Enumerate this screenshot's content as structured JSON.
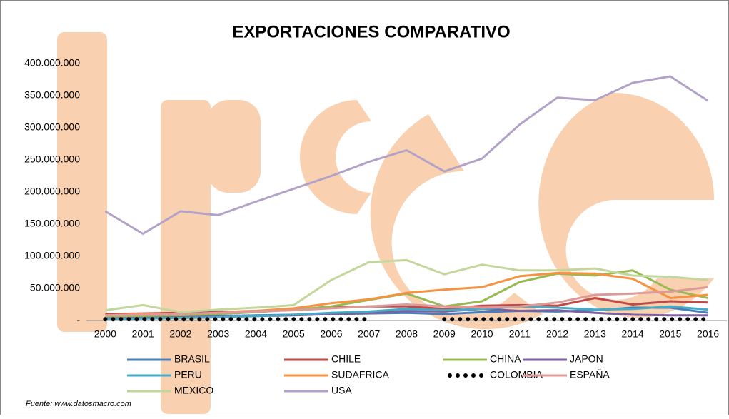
{
  "chart_data": {
    "type": "line",
    "title": "EXPORTACIONES COMPARATIVO",
    "source": "Fuente: www.datosmacro.com",
    "categories": [
      "2000",
      "2001",
      "2002",
      "2003",
      "2004",
      "2005",
      "2006",
      "2007",
      "2008",
      "2009",
      "2010",
      "2011",
      "2012",
      "2013",
      "2014",
      "2015",
      "2016"
    ],
    "ylim": [
      0,
      400000000
    ],
    "yticks": [
      {
        "value": 0,
        "label": "-"
      },
      {
        "value": 50000000,
        "label": "50.000.000"
      },
      {
        "value": 100000000,
        "label": "100.000.000"
      },
      {
        "value": 150000000,
        "label": "150.000.000"
      },
      {
        "value": 200000000,
        "label": "200.000.000"
      },
      {
        "value": 250000000,
        "label": "250.000.000"
      },
      {
        "value": 300000000,
        "label": "300.000.000"
      },
      {
        "value": 350000000,
        "label": "350.000.000"
      },
      {
        "value": 400000000,
        "label": "400.000.000"
      }
    ],
    "grid": false,
    "legend": "bottom",
    "series": [
      {
        "name": "BRASIL",
        "color": "#4a7ebb",
        "values": [
          4000000,
          5000000,
          6000000,
          7000000,
          8000000,
          9000000,
          10000000,
          11000000,
          12000000,
          10000000,
          13000000,
          15000000,
          14000000,
          16000000,
          20000000,
          20000000,
          12000000
        ]
      },
      {
        "name": "CHILE",
        "color": "#be4b48",
        "values": [
          10000000,
          11000000,
          12000000,
          13000000,
          15000000,
          17000000,
          20000000,
          22000000,
          22000000,
          18000000,
          23000000,
          24000000,
          23000000,
          35000000,
          25000000,
          30000000,
          28000000
        ]
      },
      {
        "name": "CHINA",
        "color": "#98b954",
        "values": [
          5000000,
          6000000,
          8000000,
          10000000,
          13000000,
          17000000,
          22000000,
          32000000,
          42000000,
          22000000,
          30000000,
          60000000,
          73000000,
          70000000,
          78000000,
          48000000,
          35000000
        ]
      },
      {
        "name": "JAPON",
        "color": "#7d60a0",
        "values": [
          3000000,
          4000000,
          5000000,
          6000000,
          7000000,
          8000000,
          10000000,
          12000000,
          15000000,
          14000000,
          18000000,
          15000000,
          16000000,
          12000000,
          9000000,
          8000000,
          8000000
        ]
      },
      {
        "name": "PERU",
        "color": "#46aac5",
        "values": [
          2000000,
          3000000,
          4000000,
          5000000,
          7000000,
          9000000,
          12000000,
          14000000,
          18000000,
          16000000,
          18000000,
          22000000,
          20000000,
          17000000,
          18000000,
          22000000,
          17000000
        ]
      },
      {
        "name": "SUDAFRICA",
        "color": "#f69240",
        "values": [
          8000000,
          10000000,
          10000000,
          12000000,
          15000000,
          19000000,
          27000000,
          33000000,
          43000000,
          48000000,
          52000000,
          69000000,
          74000000,
          73000000,
          65000000,
          35000000,
          40000000
        ]
      },
      {
        "name": "COLOMBIA",
        "color": "#000000",
        "style": "dotted",
        "values": [
          2000000,
          2000000,
          2000000,
          2000000,
          2000000,
          2000000,
          2000000,
          2000000,
          null,
          2000000,
          2000000,
          2000000,
          2000000,
          2000000,
          2000000,
          2000000,
          2000000
        ]
      },
      {
        "name": "ESPAÑA",
        "color": "#dc9a98",
        "values": [
          8000000,
          9000000,
          10000000,
          12000000,
          14000000,
          16000000,
          19000000,
          22000000,
          25000000,
          22000000,
          20000000,
          22000000,
          28000000,
          40000000,
          42000000,
          45000000,
          52000000
        ]
      },
      {
        "name": "MEXICO",
        "color": "#c3d69b",
        "values": [
          16000000,
          24000000,
          13000000,
          17000000,
          20000000,
          24000000,
          63000000,
          91000000,
          94000000,
          72000000,
          87000000,
          78000000,
          78000000,
          81000000,
          70000000,
          68000000,
          63000000
        ]
      },
      {
        "name": "USA",
        "color": "#b3a2c7",
        "values": [
          170000000,
          135000000,
          170000000,
          164000000,
          185000000,
          205000000,
          225000000,
          247000000,
          265000000,
          232000000,
          252000000,
          305000000,
          347000000,
          343000000,
          370000000,
          380000000,
          342000000
        ]
      }
    ]
  }
}
